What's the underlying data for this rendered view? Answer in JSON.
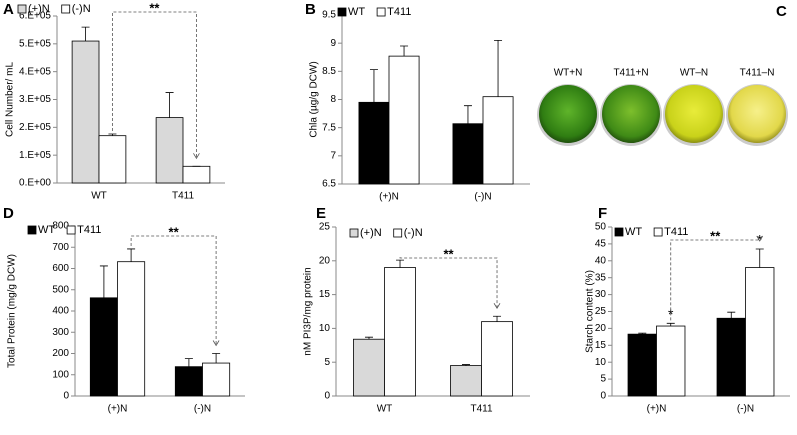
{
  "chart_data": [
    {
      "type": "bar",
      "panel": "A",
      "ylabel": "Cell Number/ mL",
      "categories": [
        "WT",
        "T411"
      ],
      "series": [
        {
          "name": "(+)N",
          "color": "#d9d9d9",
          "values": [
            510000,
            235000
          ],
          "errors": [
            50000,
            90000
          ]
        },
        {
          "name": "(-)N",
          "color": "#ffffff",
          "values": [
            170000,
            60000
          ],
          "errors": [
            6000,
            0
          ]
        }
      ],
      "ylim": [
        0,
        600000
      ],
      "yticks": [
        {
          "value": 0,
          "label": "0.E+00"
        },
        {
          "value": 100000,
          "label": "1.E+05"
        },
        {
          "value": 200000,
          "label": "2.E+05"
        },
        {
          "value": 300000,
          "label": "3.E+05"
        },
        {
          "value": 400000,
          "label": "4.E+05"
        },
        {
          "value": 500000,
          "label": "5.E+05"
        },
        {
          "value": 600000,
          "label": "6.E+05"
        }
      ],
      "annotation": "**"
    },
    {
      "type": "bar",
      "panel": "B",
      "ylabel": "Chla (µg/g DCW)",
      "categories": [
        "(+)N",
        "(-)N"
      ],
      "series": [
        {
          "name": "WT",
          "color": "#000000",
          "values": [
            7.95,
            7.57
          ],
          "errors": [
            0.58,
            0.32
          ]
        },
        {
          "name": "T411",
          "color": "#ffffff",
          "values": [
            8.77,
            8.05
          ],
          "errors": [
            0.18,
            1.0
          ]
        }
      ],
      "ylim": [
        6.5,
        9.5
      ],
      "yticks": [
        6.5,
        7,
        7.5,
        8,
        8.5,
        9,
        9.5
      ]
    },
    {
      "type": "bar",
      "panel": "D",
      "ylabel": "Total Protein (mg/g DCW)",
      "categories": [
        "(+)N",
        "(-)N"
      ],
      "series": [
        {
          "name": "WT",
          "color": "#000000",
          "values": [
            462,
            138
          ],
          "errors": [
            150,
            38
          ]
        },
        {
          "name": "T411",
          "color": "#ffffff",
          "values": [
            632,
            155
          ],
          "errors": [
            60,
            45
          ]
        }
      ],
      "ylim": [
        0,
        800
      ],
      "yticks": [
        0,
        100,
        200,
        300,
        400,
        500,
        600,
        700,
        800
      ],
      "annotation": "**"
    },
    {
      "type": "bar",
      "panel": "E",
      "ylabel": "nM PI3P/mg protein",
      "categories": [
        "WT",
        "T411"
      ],
      "series": [
        {
          "name": "(+)N",
          "color": "#d9d9d9",
          "values": [
            8.4,
            4.5
          ],
          "errors": [
            0.3,
            0.15
          ]
        },
        {
          "name": "(-)N",
          "color": "#ffffff",
          "values": [
            19,
            11
          ],
          "errors": [
            1.1,
            0.8
          ]
        }
      ],
      "ylim": [
        0,
        25
      ],
      "yticks": [
        0,
        5,
        10,
        15,
        20,
        25
      ],
      "annotation": "**"
    },
    {
      "type": "bar",
      "panel": "F",
      "ylabel": "Starch content (%)",
      "categories": [
        "(+)N",
        "(-)N"
      ],
      "series": [
        {
          "name": "WT",
          "color": "#000000",
          "values": [
            18.3,
            23
          ],
          "errors": [
            0.3,
            1.8
          ]
        },
        {
          "name": "T411",
          "color": "#ffffff",
          "values": [
            20.7,
            38
          ],
          "errors": [
            0.8,
            5.5
          ],
          "annotations": [
            "*",
            "*"
          ]
        }
      ],
      "ylim": [
        0,
        50
      ],
      "yticks": [
        0,
        5,
        10,
        15,
        20,
        25,
        30,
        35,
        40,
        45,
        50
      ],
      "annotation": "**"
    }
  ],
  "photo": {
    "panel": "C",
    "labels": [
      "WT+N",
      "T411+N",
      "WT–N",
      "T411–N"
    ]
  }
}
